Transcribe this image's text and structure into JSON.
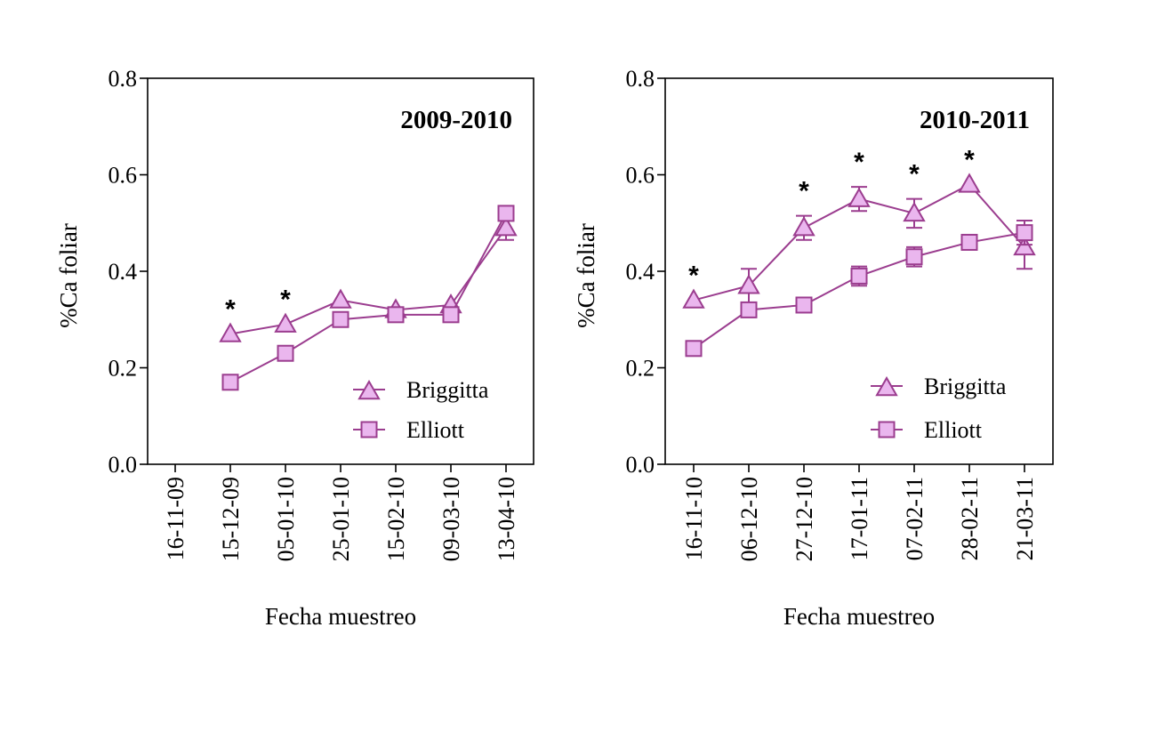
{
  "colors": {
    "line": "#9b3d8f",
    "marker_fill": "#eab6ee",
    "axis": "#000000"
  },
  "chart_data": [
    {
      "type": "line",
      "title": "2009-2010",
      "xlabel": "Fecha muestreo",
      "ylabel": "%Ca foliar",
      "categories": [
        "16-11-09",
        "15-12-09",
        "05-01-10",
        "25-01-10",
        "15-02-10",
        "09-03-10",
        "13-04-10"
      ],
      "ylim": [
        0,
        0.8
      ],
      "yticks": [
        "0.0",
        "0.2",
        "0.4",
        "0.6",
        "0.8"
      ],
      "grid": false,
      "legend_position": "bottom-right",
      "significance_mark": "*",
      "significant_categories": [
        "15-12-09",
        "05-01-10"
      ],
      "series": [
        {
          "name": "Briggitta",
          "marker": "triangle",
          "values": [
            null,
            0.27,
            0.29,
            0.34,
            0.32,
            0.33,
            0.49
          ],
          "errors": [
            null,
            0,
            0,
            0,
            0,
            0,
            0.025
          ]
        },
        {
          "name": "Elliott",
          "marker": "square",
          "values": [
            null,
            0.17,
            0.23,
            0.3,
            0.31,
            0.31,
            0.52
          ],
          "errors": [
            null,
            0,
            0,
            0,
            0,
            0,
            0.015
          ]
        }
      ]
    },
    {
      "type": "line",
      "title": "2010-2011",
      "xlabel": "Fecha muestreo",
      "ylabel": "%Ca foliar",
      "categories": [
        "16-11-10",
        "06-12-10",
        "27-12-10",
        "17-01-11",
        "07-02-11",
        "28-02-11",
        "21-03-11"
      ],
      "ylim": [
        0,
        0.8
      ],
      "yticks": [
        "0.0",
        "0.2",
        "0.4",
        "0.6",
        "0.8"
      ],
      "grid": false,
      "legend_position": "bottom-right",
      "significance_mark": "*",
      "significant_categories": [
        "16-11-10",
        "27-12-10",
        "17-01-11",
        "07-02-11",
        "28-02-11"
      ],
      "series": [
        {
          "name": "Briggitta",
          "marker": "triangle",
          "values": [
            0.34,
            0.37,
            0.49,
            0.55,
            0.52,
            0.58,
            0.45
          ],
          "errors": [
            0,
            0.035,
            0.025,
            0.025,
            0.03,
            0,
            0.045
          ]
        },
        {
          "name": "Elliott",
          "marker": "square",
          "values": [
            0.24,
            0.32,
            0.33,
            0.39,
            0.43,
            0.46,
            0.48
          ],
          "errors": [
            0,
            0,
            0,
            0.02,
            0.02,
            0,
            0.025
          ]
        }
      ]
    }
  ]
}
